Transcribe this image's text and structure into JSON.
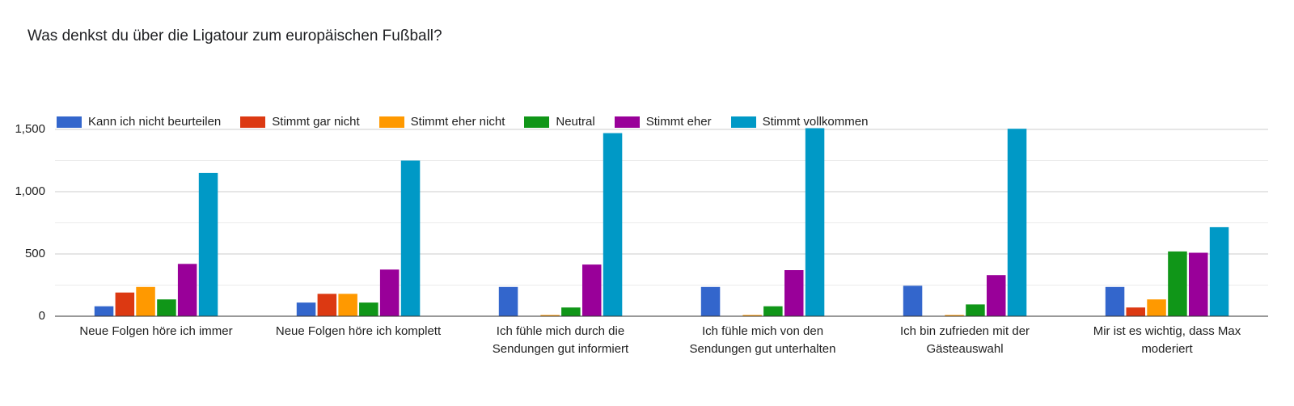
{
  "title": "Was denkst du über die Ligatour zum europäischen Fußball?",
  "chart_data": {
    "type": "bar",
    "title": "Was denkst du über die Ligatour zum europäischen Fußball?",
    "categories": [
      "Neue Folgen höre ich immer",
      "Neue Folgen höre ich komplett",
      "Ich fühle mich durch die Sendungen gut informiert",
      "Ich fühle mich von den Sendungen gut unterhalten",
      "Ich bin zufrieden mit der Gästeauswahl",
      "Mir ist es wichtig, dass Max moderiert"
    ],
    "category_lines": [
      [
        "Neue Folgen höre ich immer"
      ],
      [
        "Neue Folgen höre ich komplett"
      ],
      [
        "Ich fühle mich durch die",
        "Sendungen gut informiert"
      ],
      [
        "Ich fühle mich von den",
        "Sendungen gut unterhalten"
      ],
      [
        "Ich bin zufrieden mit der",
        "Gästeauswahl"
      ],
      [
        "Mir ist es wichtig, dass Max",
        "moderiert"
      ]
    ],
    "series": [
      {
        "name": "Kann ich nicht beurteilen",
        "color": "#3366cc",
        "values": [
          80,
          110,
          235,
          235,
          245,
          235
        ]
      },
      {
        "name": "Stimmt gar nicht",
        "color": "#dc3912",
        "values": [
          190,
          180,
          0,
          0,
          0,
          70
        ]
      },
      {
        "name": "Stimmt eher nicht",
        "color": "#ff9900",
        "values": [
          235,
          180,
          10,
          10,
          10,
          135
        ]
      },
      {
        "name": "Neutral",
        "color": "#109618",
        "values": [
          135,
          110,
          70,
          80,
          95,
          520
        ]
      },
      {
        "name": "Stimmt eher",
        "color": "#990099",
        "values": [
          420,
          375,
          415,
          370,
          330,
          510
        ]
      },
      {
        "name": "Stimmt vollkommen",
        "color": "#0099c6",
        "values": [
          1150,
          1250,
          1470,
          1510,
          1505,
          715
        ]
      }
    ],
    "ylim": [
      0,
      1500
    ],
    "yticks": [
      0,
      500,
      1000,
      1500
    ],
    "ytick_labels": [
      "0",
      "500",
      "1,000",
      "1,500"
    ],
    "grid": true,
    "legend_position": "top-left",
    "xlabel": "",
    "ylabel": ""
  }
}
